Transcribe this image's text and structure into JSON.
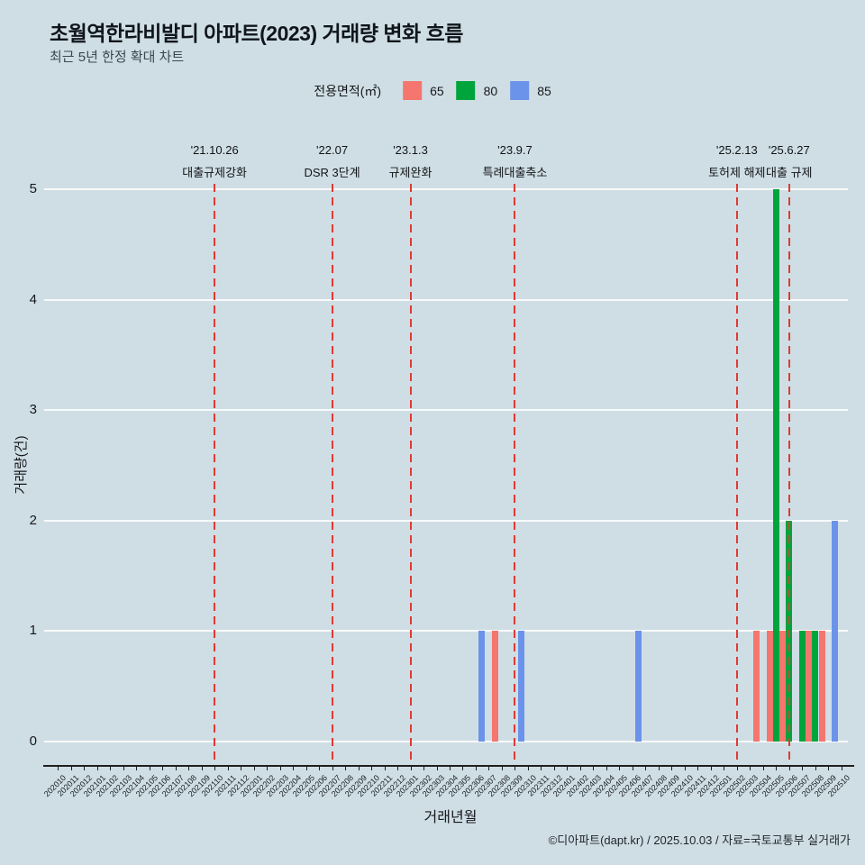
{
  "page": {
    "title": "초월역한라비발디 아파트(2023) 거래량 변화 흐름",
    "subtitle": "최근 5년 한정 확대 차트",
    "footer": "©디아파트(dapt.kr) / 2025.10.03 / 자료=국토교통부 실거래가",
    "background": "#cfdee4"
  },
  "legend": {
    "label": "전용면적(㎡)",
    "items": [
      {
        "label": "65",
        "color": "#f4766e"
      },
      {
        "label": "80",
        "color": "#00a43c"
      },
      {
        "label": "85",
        "color": "#6b93ea"
      }
    ]
  },
  "chart_data": {
    "type": "bar",
    "title": "초월역한라비발디 아파트(2023) 거래량 변화 흐름",
    "xlabel": "거래년월",
    "ylabel": "거래량(건)",
    "ylim": [
      0,
      5
    ],
    "yticks": [
      0,
      1,
      2,
      3,
      4,
      5
    ],
    "grid_color": "#ffffff",
    "event_color": "#e03a33",
    "axis_color": "#1f1f1f",
    "legend_position": "top",
    "categories": [
      "202010",
      "202011",
      "202012",
      "202101",
      "202102",
      "202103",
      "202104",
      "202105",
      "202106",
      "202107",
      "202108",
      "202109",
      "202110",
      "202111",
      "202112",
      "202201",
      "202202",
      "202203",
      "202204",
      "202205",
      "202206",
      "202207",
      "202208",
      "202209",
      "202210",
      "202211",
      "202212",
      "202301",
      "202302",
      "202303",
      "202304",
      "202305",
      "202306",
      "202307",
      "202308",
      "202309",
      "202310",
      "202311",
      "202312",
      "202401",
      "202402",
      "202403",
      "202404",
      "202405",
      "202406",
      "202407",
      "202408",
      "202409",
      "202410",
      "202411",
      "202412",
      "202501",
      "202502",
      "202503",
      "202504",
      "202505",
      "202506",
      "202507",
      "202508",
      "202509",
      "202510"
    ],
    "series": [
      {
        "name": "65",
        "color": "#f4766e",
        "points": [
          {
            "month": "202308",
            "count": 1
          },
          {
            "month": "202310",
            "count": 1
          },
          {
            "month": "202504",
            "count": 1
          },
          {
            "month": "202505",
            "count": 1
          },
          {
            "month": "202506",
            "count": 1
          },
          {
            "month": "202508",
            "count": 1
          },
          {
            "month": "202509",
            "count": 1
          }
        ]
      },
      {
        "name": "80",
        "color": "#00a43c",
        "points": [
          {
            "month": "202505",
            "count": 5
          },
          {
            "month": "202506",
            "count": 2
          },
          {
            "month": "202507",
            "count": 1
          },
          {
            "month": "202508",
            "count": 1
          }
        ]
      },
      {
        "name": "85",
        "color": "#6b93ea",
        "points": [
          {
            "month": "202306",
            "count": 1
          },
          {
            "month": "202309",
            "count": 1
          },
          {
            "month": "202406",
            "count": 1
          },
          {
            "month": "202509",
            "count": 2
          }
        ]
      }
    ],
    "events": [
      {
        "date": "'21.10.26",
        "label": "대출규제강화",
        "month": "202110"
      },
      {
        "date": "'22.07",
        "label": "DSR 3단계",
        "month": "202207"
      },
      {
        "date": "'23.1.3",
        "label": "규제완화",
        "month": "202301"
      },
      {
        "date": "'23.9.7",
        "label": "특례대출축소",
        "month": "202309"
      },
      {
        "date": "'25.2.13",
        "label": "토허제 해제",
        "month": "202502"
      },
      {
        "date": "'25.6.27",
        "label": "대출 규제",
        "month": "202506"
      }
    ]
  }
}
